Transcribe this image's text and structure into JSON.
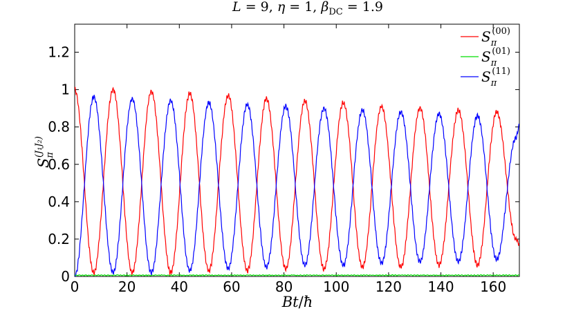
{
  "chart_data": {
    "type": "line",
    "title": "L = 9, η = 1, β_DC = 1.9",
    "title_parts": {
      "l": "L",
      "eq1": " = 9, ",
      "eta": "η",
      "eq2": " = 1, ",
      "beta": "β",
      "beta_sub": "DC",
      "eq3": " = 1.9"
    },
    "xlabel": "Bt/ħ",
    "xlabel_parts": {
      "b": "Bt",
      "slash": "/",
      "hbar": "ħ"
    },
    "ylabel": "S_π^(J1 J2)",
    "ylabel_parts": {
      "s": "S",
      "sub": "π",
      "sup": "(J₁J₂)"
    },
    "xlim": [
      0,
      170
    ],
    "ylim": [
      0,
      1.35
    ],
    "x_ticks": [
      0,
      20,
      40,
      60,
      80,
      100,
      120,
      140,
      160
    ],
    "x_tick_labels": [
      "0",
      "20",
      "40",
      "60",
      "80",
      "100",
      "120",
      "140",
      "160"
    ],
    "y_ticks": [
      0,
      0.2,
      0.4,
      0.6,
      0.8,
      1,
      1.2
    ],
    "y_tick_labels": [
      "0",
      "0.2",
      "0.4",
      "0.6",
      "0.8",
      "1",
      "1.2"
    ],
    "grid": false,
    "legend_position": "top-right",
    "series": [
      {
        "name": "S_π^(00)",
        "legend_sub": "π",
        "legend_sup": "(00)",
        "color": "#ff0000",
        "x": [
          0,
          7.3,
          14.7,
          22.0,
          29.3,
          36.7,
          44.0,
          51.3,
          58.7,
          66.0,
          73.3,
          80.7,
          88.0,
          95.3,
          102.7,
          110.0,
          117.3,
          124.7,
          132.0,
          139.3,
          146.7,
          154.0,
          161.3,
          168.7,
          170
        ],
        "values": [
          1.0,
          0.02,
          1.0,
          0.02,
          0.99,
          0.02,
          0.98,
          0.03,
          0.97,
          0.03,
          0.95,
          0.04,
          0.94,
          0.04,
          0.93,
          0.05,
          0.91,
          0.05,
          0.9,
          0.06,
          0.89,
          0.06,
          0.88,
          0.2,
          0.17
        ]
      },
      {
        "name": "S_π^(01)",
        "legend_sub": "π",
        "legend_sup": "(01)",
        "color": "#00dd00",
        "x": [
          0,
          170
        ],
        "values": [
          0.0,
          0.0
        ]
      },
      {
        "name": "S_π^(11)",
        "legend_sub": "π",
        "legend_sup": "(11)",
        "color": "#0000ff",
        "x": [
          0,
          7.3,
          14.7,
          22.0,
          29.3,
          36.7,
          44.0,
          51.3,
          58.7,
          66.0,
          73.3,
          80.7,
          88.0,
          95.3,
          102.7,
          110.0,
          117.3,
          124.7,
          132.0,
          139.3,
          146.7,
          154.0,
          161.3,
          168.7,
          170
        ],
        "values": [
          0.0,
          0.96,
          0.02,
          0.95,
          0.02,
          0.94,
          0.03,
          0.93,
          0.04,
          0.92,
          0.05,
          0.91,
          0.06,
          0.9,
          0.06,
          0.89,
          0.07,
          0.88,
          0.08,
          0.87,
          0.08,
          0.86,
          0.09,
          0.74,
          0.81
        ]
      }
    ]
  }
}
